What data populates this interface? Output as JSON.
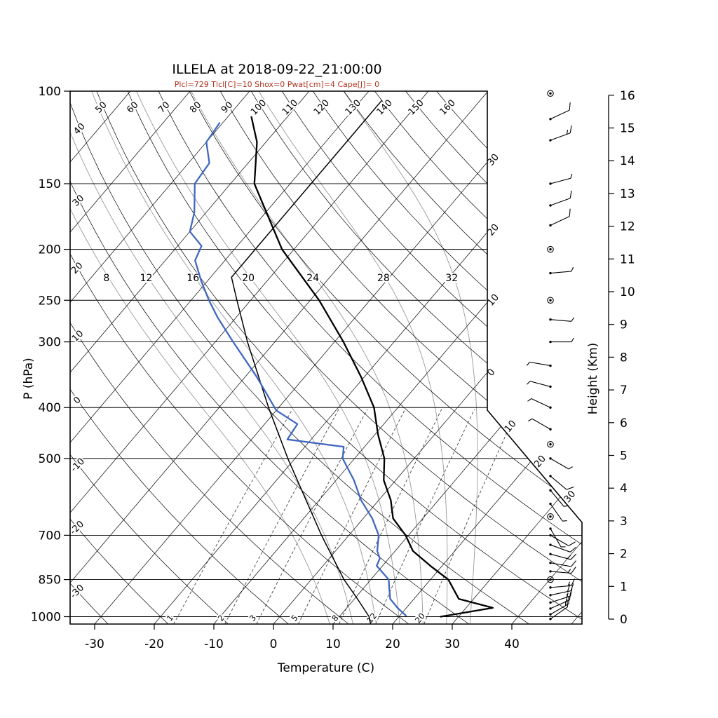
{
  "title": "ILLELA at 2018-09-22_21:00:00",
  "subtitle": "Plcl=729 Tlcl[C]=10 Shox=0 Pwat[cm]=4 Cape[J]= 0",
  "axes": {
    "pressure_label": "P (hPa)",
    "temperature_label": "Temperature (C)",
    "height_label": "Height (Km)",
    "pressure_ticks": [
      100,
      150,
      200,
      250,
      300,
      400,
      500,
      700,
      850,
      1000
    ],
    "temperature_ticks": [
      -30,
      -20,
      -10,
      0,
      10,
      20,
      30,
      40
    ],
    "height_ticks": [
      0,
      1,
      2,
      3,
      4,
      5,
      6,
      7,
      8,
      9,
      10,
      11,
      12,
      13,
      14,
      15,
      16
    ]
  },
  "grid_labels": {
    "dry_adiabats_top": [
      "50",
      "60",
      "70",
      "80",
      "90",
      "100",
      "110",
      "120",
      "130",
      "140",
      "150",
      "160"
    ],
    "dry_adiabats_left": [
      "40",
      "30",
      "20",
      "10",
      "0",
      "-10",
      "-20",
      "-30"
    ],
    "isotherms_right": [
      "30",
      "20",
      "10",
      "0",
      "10",
      "20",
      "30"
    ],
    "moist_adiabats": [
      "8",
      "12",
      "16",
      "20",
      "24",
      "28",
      "32"
    ],
    "mixing_ratio": [
      "1",
      "2",
      "3",
      "5",
      "8",
      "12",
      "20"
    ]
  },
  "chart_data": {
    "type": "line",
    "subtype": "skew-t-log-p-sounding",
    "title": "ILLELA at 2018-09-22_21:00:00",
    "xlabel": "Temperature (C)",
    "ylabel": "P (hPa)",
    "y2label": "Height (Km)",
    "x_range": [
      -35,
      50
    ],
    "pressure_range": [
      100,
      1033
    ],
    "height_range_km": [
      0,
      16
    ],
    "temperature_profile": [
      {
        "p": 1000,
        "t": 27
      },
      {
        "p": 962,
        "t": 34.5
      },
      {
        "p": 925,
        "t": 27.5
      },
      {
        "p": 850,
        "t": 23
      },
      {
        "p": 800,
        "t": 18
      },
      {
        "p": 750,
        "t": 13
      },
      {
        "p": 700,
        "t": 9.5
      },
      {
        "p": 650,
        "t": 5
      },
      {
        "p": 600,
        "t": 2
      },
      {
        "p": 550,
        "t": -2
      },
      {
        "p": 500,
        "t": -5
      },
      {
        "p": 450,
        "t": -9.5
      },
      {
        "p": 400,
        "t": -14
      },
      {
        "p": 350,
        "t": -20.5
      },
      {
        "p": 300,
        "t": -28.5
      },
      {
        "p": 250,
        "t": -38.5
      },
      {
        "p": 200,
        "t": -52
      },
      {
        "p": 150,
        "t": -66
      },
      {
        "p": 125,
        "t": -71.5
      },
      {
        "p": 112,
        "t": -76
      }
    ],
    "dewpoint_profile": [
      {
        "p": 995,
        "t": 21
      },
      {
        "p": 975,
        "t": 19.5
      },
      {
        "p": 962,
        "t": 18.5
      },
      {
        "p": 925,
        "t": 16
      },
      {
        "p": 875,
        "t": 14
      },
      {
        "p": 850,
        "t": 13
      },
      {
        "p": 800,
        "t": 9
      },
      {
        "p": 775,
        "t": 8.5
      },
      {
        "p": 750,
        "t": 7
      },
      {
        "p": 700,
        "t": 5
      },
      {
        "p": 650,
        "t": 1.5
      },
      {
        "p": 600,
        "t": -3
      },
      {
        "p": 550,
        "t": -7
      },
      {
        "p": 500,
        "t": -12
      },
      {
        "p": 475,
        "t": -13.5
      },
      {
        "p": 460,
        "t": -24
      },
      {
        "p": 430,
        "t": -24.5
      },
      {
        "p": 405,
        "t": -30
      },
      {
        "p": 350,
        "t": -38
      },
      {
        "p": 300,
        "t": -47
      },
      {
        "p": 270,
        "t": -53
      },
      {
        "p": 250,
        "t": -57
      },
      {
        "p": 230,
        "t": -61
      },
      {
        "p": 210,
        "t": -65
      },
      {
        "p": 197,
        "t": -66
      },
      {
        "p": 185,
        "t": -70
      },
      {
        "p": 170,
        "t": -72
      },
      {
        "p": 150,
        "t": -76
      },
      {
        "p": 137,
        "t": -76.5
      },
      {
        "p": 125,
        "t": -80
      },
      {
        "p": 115,
        "t": -80.5
      }
    ],
    "reference_line": [
      {
        "p": 1033,
        "t": 16.3
      },
      {
        "p": 1000,
        "t": 15
      },
      {
        "p": 925,
        "t": 10.5
      },
      {
        "p": 850,
        "t": 5.5
      },
      {
        "p": 700,
        "t": -4.6
      },
      {
        "p": 500,
        "t": -21.2
      },
      {
        "p": 400,
        "t": -31.7
      },
      {
        "p": 300,
        "t": -44.6
      },
      {
        "p": 250,
        "t": -52.3
      },
      {
        "p": 226,
        "t": -56.5
      },
      {
        "p": 104,
        "t": -56.5
      }
    ],
    "winds": [
      {
        "p": 101,
        "spd": 0,
        "dir": 0
      },
      {
        "p": 113,
        "spd": 10,
        "dir": 65
      },
      {
        "p": 124,
        "spd": 15,
        "dir": 70
      },
      {
        "p": 150,
        "spd": 5,
        "dir": 75
      },
      {
        "p": 165,
        "spd": 10,
        "dir": 70
      },
      {
        "p": 180,
        "spd": 10,
        "dir": 65
      },
      {
        "p": 200,
        "spd": 0,
        "dir": 0
      },
      {
        "p": 222,
        "spd": 5,
        "dir": 85
      },
      {
        "p": 250,
        "spd": 0,
        "dir": 0
      },
      {
        "p": 272,
        "spd": 5,
        "dir": 95
      },
      {
        "p": 300,
        "spd": 5,
        "dir": 90
      },
      {
        "p": 333,
        "spd": 5,
        "dir": 280
      },
      {
        "p": 365,
        "spd": 5,
        "dir": 285
      },
      {
        "p": 400,
        "spd": 5,
        "dir": 295
      },
      {
        "p": 440,
        "spd": 5,
        "dir": 300
      },
      {
        "p": 470,
        "spd": 0,
        "dir": 0
      },
      {
        "p": 500,
        "spd": 5,
        "dir": 120
      },
      {
        "p": 540,
        "spd": 10,
        "dir": 130
      },
      {
        "p": 575,
        "spd": 5,
        "dir": 140
      },
      {
        "p": 610,
        "spd": 5,
        "dir": 145
      },
      {
        "p": 645,
        "spd": 0,
        "dir": 0
      },
      {
        "p": 680,
        "spd": 5,
        "dir": 150
      },
      {
        "p": 700,
        "spd": 10,
        "dir": 120
      },
      {
        "p": 730,
        "spd": 10,
        "dir": 110
      },
      {
        "p": 760,
        "spd": 15,
        "dir": 105
      },
      {
        "p": 790,
        "spd": 10,
        "dir": 100
      },
      {
        "p": 820,
        "spd": 15,
        "dir": 95
      },
      {
        "p": 850,
        "spd": 0,
        "dir": 0
      },
      {
        "p": 880,
        "spd": 15,
        "dir": 85
      },
      {
        "p": 910,
        "spd": 20,
        "dir": 78
      },
      {
        "p": 940,
        "spd": 15,
        "dir": 72
      },
      {
        "p": 965,
        "spd": 20,
        "dir": 66
      },
      {
        "p": 990,
        "spd": 15,
        "dir": 60
      },
      {
        "p": 1010,
        "spd": 10,
        "dir": 55
      }
    ],
    "colors": {
      "temperature": "#000000",
      "dewpoint": "#4068c0",
      "reference": "#000000",
      "subtitle": "#b0341f",
      "moist_adiabat": "#999999",
      "grid": "#000000"
    }
  }
}
